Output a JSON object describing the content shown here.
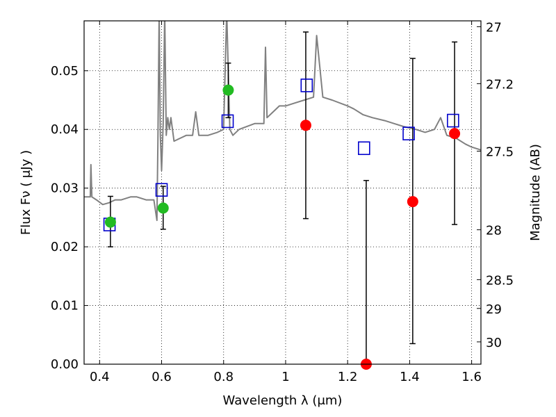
{
  "chart_data": {
    "type": "scatter",
    "title": "",
    "xlabel": "Wavelength  λ (μm)",
    "ylabel": "Flux  Fν  ( μJy )",
    "ylabel_right": "Magnitude (AB)",
    "xlim": [
      0.35,
      1.63
    ],
    "ylim": [
      0.0,
      0.0585
    ],
    "grid": true,
    "legend": "none",
    "x_ticks": [
      0.4,
      0.6,
      0.8,
      1.0,
      1.2,
      1.4,
      1.6
    ],
    "x_tick_labels": [
      "0.4",
      "0.6",
      "0.8",
      "1",
      "1.2",
      "1.4",
      "1.6"
    ],
    "y_ticks": [
      0.0,
      0.01,
      0.02,
      0.03,
      0.04,
      0.05
    ],
    "y_tick_labels": [
      "0.00",
      "0.01",
      "0.02",
      "0.03",
      "0.04",
      "0.05"
    ],
    "right_ticks": [
      {
        "label": "27",
        "flux": 0.0575
      },
      {
        "label": "27.2",
        "flux": 0.0478
      },
      {
        "label": "27.5",
        "flux": 0.0363
      },
      {
        "label": "28",
        "flux": 0.0229
      },
      {
        "label": "28.5",
        "flux": 0.0144
      },
      {
        "label": "29",
        "flux": 0.0095
      },
      {
        "label": "30",
        "flux": 0.0038
      }
    ],
    "colors": {
      "spectrum": "#808080",
      "detected": "#22bb22",
      "upper": "#ff0000",
      "model": "#0000cc",
      "error": "#000000"
    },
    "series": [
      {
        "role": "spectrum",
        "x": [
          0.35,
          0.37,
          0.372,
          0.375,
          0.39,
          0.41,
          0.43,
          0.45,
          0.47,
          0.5,
          0.52,
          0.55,
          0.575,
          0.585,
          0.588,
          0.592,
          0.596,
          0.6,
          0.605,
          0.61,
          0.615,
          0.62,
          0.625,
          0.63,
          0.64,
          0.66,
          0.68,
          0.7,
          0.71,
          0.72,
          0.75,
          0.78,
          0.8,
          0.81,
          0.82,
          0.83,
          0.85,
          0.9,
          0.93,
          0.935,
          0.94,
          0.96,
          0.98,
          1.0,
          1.03,
          1.06,
          1.09,
          1.1,
          1.12,
          1.15,
          1.2,
          1.22,
          1.25,
          1.28,
          1.32,
          1.35,
          1.38,
          1.42,
          1.45,
          1.48,
          1.5,
          1.52,
          1.55,
          1.58,
          1.6,
          1.63
        ],
        "y": [
          0.0285,
          0.0285,
          0.034,
          0.0285,
          0.028,
          0.0272,
          0.0275,
          0.028,
          0.028,
          0.0285,
          0.0285,
          0.028,
          0.028,
          0.0245,
          0.038,
          0.06,
          0.039,
          0.033,
          0.041,
          0.06,
          0.039,
          0.042,
          0.04,
          0.042,
          0.038,
          0.0385,
          0.039,
          0.039,
          0.043,
          0.039,
          0.039,
          0.0395,
          0.04,
          0.06,
          0.04,
          0.039,
          0.04,
          0.041,
          0.041,
          0.054,
          0.042,
          0.043,
          0.044,
          0.044,
          0.0445,
          0.045,
          0.0455,
          0.056,
          0.0455,
          0.045,
          0.044,
          0.0435,
          0.0425,
          0.042,
          0.0415,
          0.041,
          0.0405,
          0.04,
          0.0395,
          0.04,
          0.042,
          0.039,
          0.0385,
          0.0375,
          0.037,
          0.0365
        ]
      },
      {
        "role": "detected",
        "x": [
          0.435,
          0.605,
          0.815
        ],
        "y": [
          0.0242,
          0.0266,
          0.0467
        ],
        "yerr_low": [
          0.02,
          0.023,
          0.042
        ],
        "yerr_high": [
          0.0286,
          0.0303,
          0.0513
        ]
      },
      {
        "role": "upper",
        "x": [
          1.065,
          1.26,
          1.41,
          1.545
        ],
        "y": [
          0.0407,
          0.0,
          0.0277,
          0.0393
        ],
        "yerr_low": [
          0.0248,
          0.0,
          0.0035,
          0.0238
        ],
        "yerr_high": [
          0.0566,
          0.0313,
          0.0521,
          0.0549
        ]
      },
      {
        "role": "model",
        "x": [
          0.432,
          0.6,
          0.813,
          1.068,
          1.253,
          1.397,
          1.54
        ],
        "y": [
          0.0238,
          0.0297,
          0.0414,
          0.0475,
          0.0368,
          0.0393,
          0.0415
        ]
      }
    ]
  }
}
